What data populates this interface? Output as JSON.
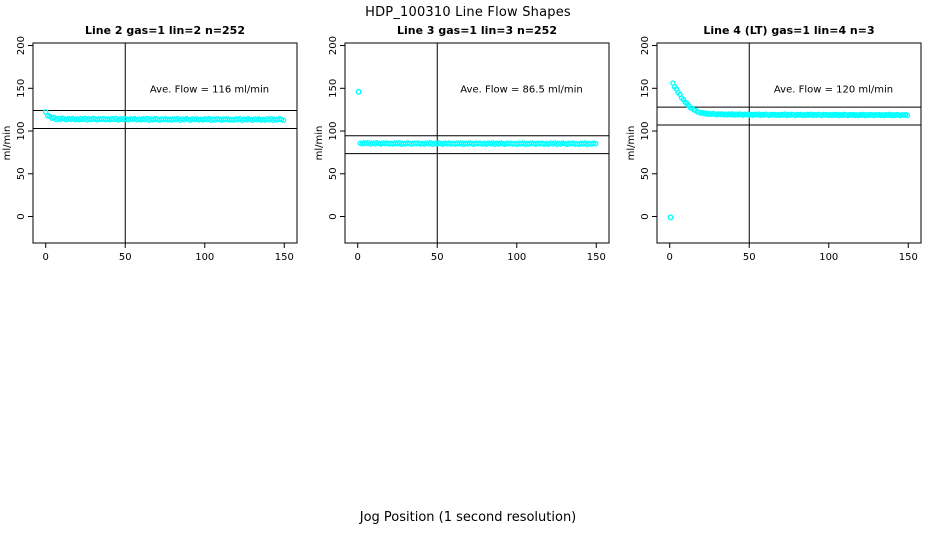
{
  "page": {
    "main_title": "HDP_100310  Line Flow Shapes",
    "x_axis_label": "Jog Position (1 second resolution)"
  },
  "colors": {
    "points": "#00FFFF",
    "axis": "#000000",
    "background": "#FFFFFF"
  },
  "chart_data": {
    "type": "scatter",
    "layout": "three panels in one row, open-circle points, no grid",
    "grid": false,
    "xlabel": "Jog Position (1 second resolution)",
    "ylabel": "ml/min",
    "x_ticks": [
      0,
      50,
      100,
      150
    ],
    "y_ticks": [
      0,
      50,
      100,
      150,
      200
    ],
    "xlim": [
      -8,
      158
    ],
    "ylim": [
      -31,
      203
    ],
    "jitter_cycle": [
      0.1,
      -0.7,
      0.6,
      -0.3,
      0.8,
      -0.9,
      0.3,
      -0.5,
      0.7,
      0,
      -0.8,
      0.45,
      -0.15,
      0.55,
      -0.6
    ],
    "panels": [
      {
        "title": "Line 2 gas=1 lin=2 n=252",
        "n": 252,
        "annotation": "Ave. Flow =  116  ml/min",
        "ave_flow_ml_min": 116,
        "annotation_xy": [
          103,
          145
        ],
        "ref_hlines": [
          124,
          103
        ],
        "ref_vline": 50,
        "band": {
          "trend": [
            [
              0,
              122.3
            ],
            [
              1,
              119.2
            ],
            [
              2,
              117.3
            ],
            [
              3,
              116.1
            ],
            [
              4,
              115.3
            ],
            [
              6,
              114.6
            ],
            [
              9,
              114.2
            ],
            [
              15,
              114.0
            ],
            [
              40,
              113.9
            ],
            [
              80,
              113.7
            ],
            [
              150,
              113.5
            ]
          ],
          "step": 1.3,
          "jitter": 1.15
        },
        "outliers": []
      },
      {
        "title": "Line 3 gas=1 lin=3 n=252",
        "n": 252,
        "annotation": "Ave. Flow =  86.5  ml/min",
        "ave_flow_ml_min": 86.5,
        "annotation_xy": [
          103,
          145
        ],
        "ref_hlines": [
          94.5,
          73.5
        ],
        "ref_vline": 50,
        "band": {
          "trend": [
            [
              1.5,
              85.7
            ],
            [
              20,
              85.5
            ],
            [
              60,
              85.4
            ],
            [
              150,
              85.2
            ]
          ],
          "step": 1.3,
          "jitter": 1.0
        },
        "outliers": [
          [
            0.5,
            146
          ]
        ]
      },
      {
        "title": "Line 4 (LT) gas=1 lin=4 n=3",
        "n": 3,
        "annotation": "Ave. Flow =  120  ml/min",
        "ave_flow_ml_min": 120,
        "annotation_xy": [
          103,
          145
        ],
        "ref_hlines": [
          128,
          107
        ],
        "ref_vline": 50,
        "band": {
          "trend": [
            [
              2,
              156
            ],
            [
              3,
              152.5
            ],
            [
              4,
              149.2
            ],
            [
              5,
              146.2
            ],
            [
              6,
              143.3
            ],
            [
              7,
              140.6
            ],
            [
              8,
              138
            ],
            [
              9,
              135.6
            ],
            [
              10,
              133.4
            ],
            [
              11,
              131.4
            ],
            [
              12,
              129.6
            ],
            [
              13,
              127.9
            ],
            [
              14,
              126.4
            ],
            [
              15,
              125.1
            ],
            [
              16,
              124
            ],
            [
              17,
              123.1
            ],
            [
              18,
              122.4
            ],
            [
              19,
              121.8
            ],
            [
              20,
              121.3
            ],
            [
              22,
              120.6
            ],
            [
              25,
              120.1
            ],
            [
              30,
              119.7
            ],
            [
              40,
              119.4
            ],
            [
              60,
              119.1
            ],
            [
              100,
              118.9
            ],
            [
              150,
              118.7
            ]
          ],
          "step": 1.1,
          "jitter": 0.85
        },
        "outliers": [
          [
            0.5,
            -1
          ]
        ]
      }
    ]
  }
}
